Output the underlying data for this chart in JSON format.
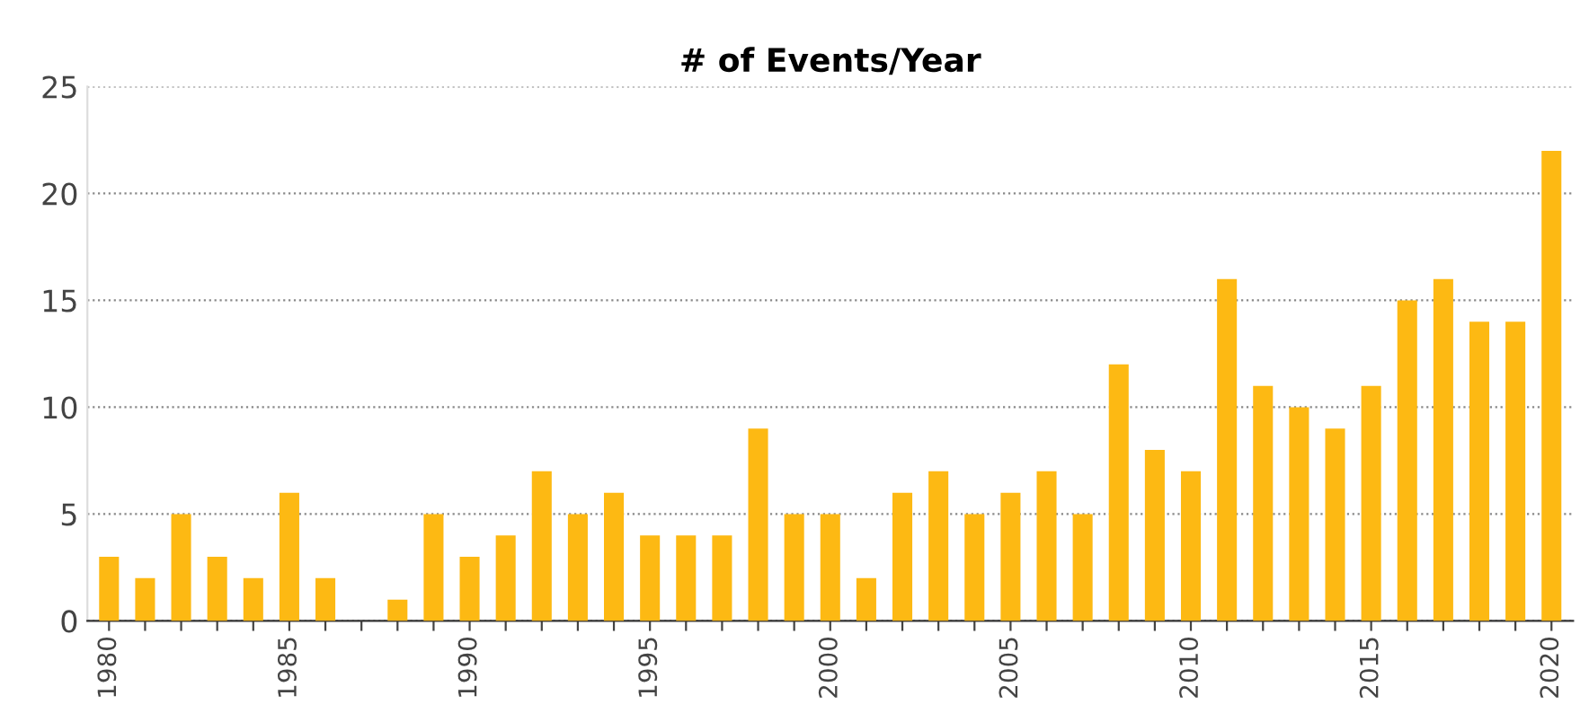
{
  "chart_data": {
    "type": "bar",
    "title": "# of Events/Year",
    "categories": [
      "1980",
      null,
      null,
      null,
      null,
      "1985",
      null,
      null,
      null,
      null,
      "1990",
      null,
      null,
      null,
      null,
      "1995",
      null,
      null,
      null,
      null,
      "2000",
      null,
      null,
      null,
      null,
      "2005",
      null,
      null,
      null,
      null,
      "2010",
      null,
      null,
      null,
      null,
      "2015",
      null,
      null,
      null,
      null,
      "2020"
    ],
    "values": [
      3,
      2,
      5,
      3,
      2,
      6,
      2,
      0,
      1,
      5,
      3,
      4,
      7,
      5,
      6,
      4,
      4,
      4,
      9,
      5,
      5,
      2,
      6,
      7,
      5,
      6,
      7,
      5,
      12,
      8,
      7,
      16,
      11,
      10,
      9,
      11,
      15,
      16,
      14,
      14,
      22
    ],
    "color": "#fdb913",
    "ylim": [
      0,
      25
    ],
    "yticks": [
      0,
      5,
      10,
      15,
      20,
      25
    ],
    "grid": "y"
  }
}
